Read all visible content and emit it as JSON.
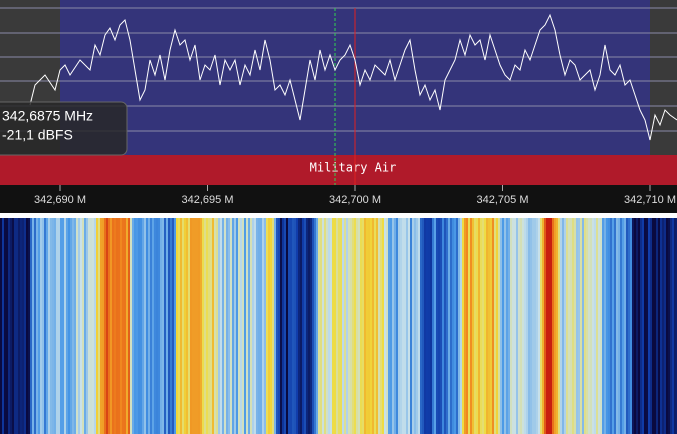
{
  "tooltip": {
    "frequency": "342,6875 MHz",
    "level": "-21,1 dBFS"
  },
  "band_label": "Military Air",
  "frequency_axis": {
    "labels": [
      "342,690 M",
      "342,695 M",
      "342,700 M",
      "342,705 M",
      "342,710 M"
    ]
  }
}
